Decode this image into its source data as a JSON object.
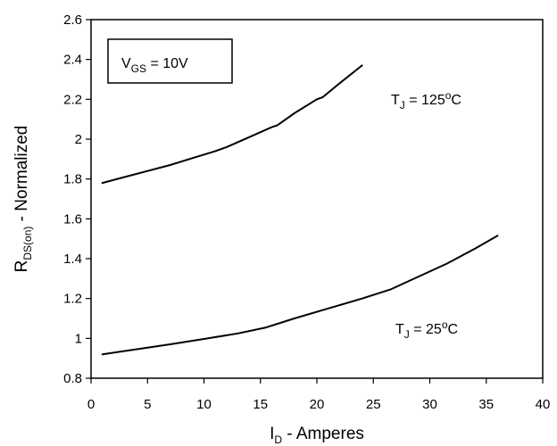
{
  "chart_data": {
    "type": "line",
    "title": "",
    "xlabel": {
      "main": "I",
      "sub": "D",
      "rest": " - Amperes"
    },
    "ylabel": {
      "main": "R",
      "sub": "DS(on)",
      "rest": " - Normalized"
    },
    "xlim": [
      0,
      40
    ],
    "ylim": [
      0.8,
      2.6
    ],
    "x_ticks": [
      0,
      5,
      10,
      15,
      20,
      25,
      30,
      35,
      40
    ],
    "y_ticks": [
      0.8,
      1,
      1.2,
      1.4,
      1.6,
      1.8,
      2,
      2.2,
      2.4,
      2.6
    ],
    "x_tick_labels": [
      "0",
      "5",
      "10",
      "15",
      "20",
      "25",
      "30",
      "35",
      "40"
    ],
    "y_tick_labels": [
      "0.8",
      "1",
      "1.2",
      "1.4",
      "1.6",
      "1.8",
      "2",
      "2.2",
      "2.4",
      "2.6"
    ],
    "grid": false,
    "condition_box": {
      "main": "V",
      "sub": "GS",
      "rest": " = 10V"
    },
    "series": [
      {
        "annotation": {
          "main": "T",
          "sub": "J",
          "rest": " = 125",
          "sup": "o",
          "unit": "C"
        },
        "x": [
          1,
          3,
          5,
          7,
          9,
          11,
          12,
          14,
          16,
          16.5,
          18,
          20,
          20.5,
          22,
          24
        ],
        "y": [
          1.78,
          1.81,
          1.84,
          1.87,
          1.905,
          1.94,
          1.96,
          2.01,
          2.06,
          2.07,
          2.13,
          2.2,
          2.21,
          2.28,
          2.37
        ]
      },
      {
        "annotation": {
          "main": "T",
          "sub": "J",
          "rest": " = 25",
          "sup": "o",
          "unit": "C"
        },
        "x": [
          1,
          4,
          7,
          10,
          13,
          15.5,
          18,
          21,
          24,
          26.5,
          29,
          31.5,
          34,
          36
        ],
        "y": [
          0.92,
          0.945,
          0.97,
          0.997,
          1.025,
          1.055,
          1.1,
          1.15,
          1.2,
          1.245,
          1.31,
          1.375,
          1.45,
          1.515
        ]
      }
    ]
  }
}
